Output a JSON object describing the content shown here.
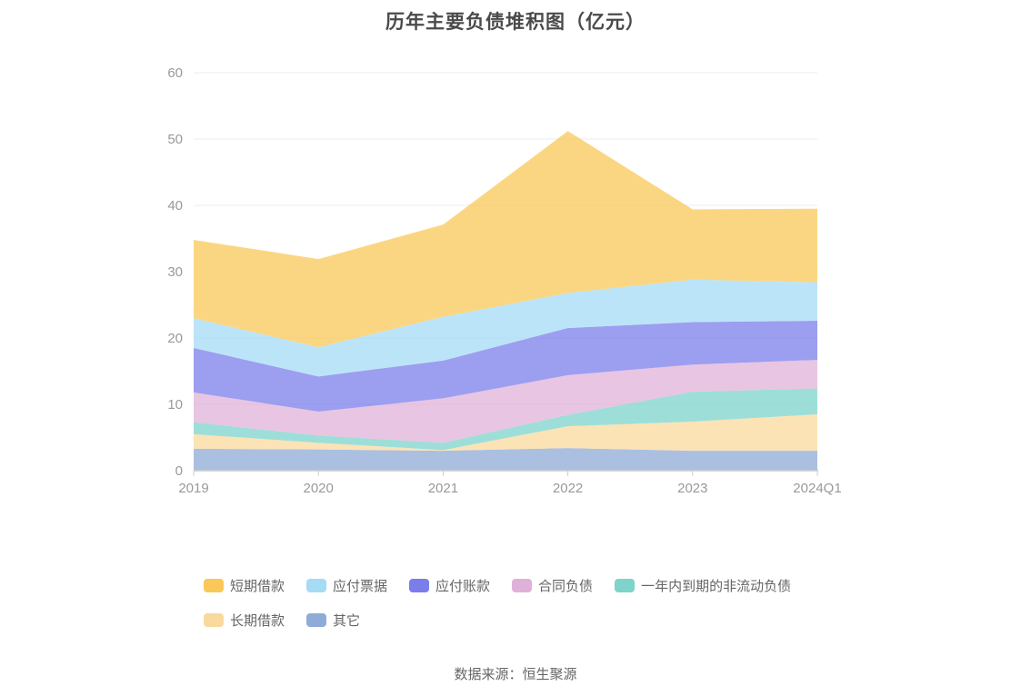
{
  "title": "历年主要负债堆积图（亿元）",
  "source": "数据来源：恒生聚源",
  "colors": {
    "background": "#FFFFFF",
    "title_text": "#4A4A4A",
    "axis_label": "#999999",
    "axis_line": "#CCCCCC",
    "gridline": "#E7ECF4",
    "legend_label": "#666666",
    "source_text": "#666666"
  },
  "chart_data": {
    "type": "area",
    "stacked": true,
    "title": "历年主要负债堆积图（亿元）",
    "xlabel": "",
    "ylabel": "",
    "x": [
      "2019",
      "2020",
      "2021",
      "2022",
      "2023",
      "2024Q1"
    ],
    "ylim": [
      0,
      60
    ],
    "yticks": [
      0,
      10,
      20,
      30,
      40,
      50,
      60
    ],
    "grid": true,
    "legend_position": "bottom",
    "legend_rows": [
      5,
      2
    ],
    "area_fill_opacity": 0.75,
    "series": [
      {
        "name": "短期借款",
        "id": "short-term-borrowings",
        "color": "#FAC858",
        "values": [
          11.8,
          13.3,
          13.9,
          24.4,
          10.6,
          11.1
        ]
      },
      {
        "name": "应付票据",
        "id": "notes-payable",
        "color": "#A5DBF5",
        "values": [
          4.5,
          4.4,
          6.6,
          5.3,
          6.4,
          5.8
        ]
      },
      {
        "name": "应付账款",
        "id": "accounts-payable",
        "color": "#7B7DEB",
        "values": [
          6.7,
          5.3,
          5.7,
          7.1,
          6.4,
          5.9
        ]
      },
      {
        "name": "合同负债",
        "id": "contract-liabilities",
        "color": "#E0B1D8",
        "values": [
          4.5,
          3.6,
          6.7,
          6.0,
          4.1,
          4.3
        ]
      },
      {
        "name": "一年内到期的非流动负债",
        "id": "non-current-liabilities-due-within-one-year",
        "color": "#7ED3CB",
        "values": [
          1.8,
          1.1,
          1.1,
          1.7,
          4.5,
          3.9
        ]
      },
      {
        "name": "长期借款",
        "id": "long-term-borrowings",
        "color": "#FAD99E",
        "values": [
          2.2,
          1.0,
          0.1,
          3.3,
          4.4,
          5.5
        ]
      },
      {
        "name": "其它",
        "id": "others",
        "color": "#8FABD7",
        "values": [
          3.3,
          3.2,
          3.0,
          3.4,
          3.0,
          3.0
        ]
      }
    ],
    "stack_order_bottom_to_top": [
      "其它",
      "长期借款",
      "一年内到期的非流动负债",
      "合同负债",
      "应付账款",
      "应付票据",
      "短期借款"
    ]
  }
}
